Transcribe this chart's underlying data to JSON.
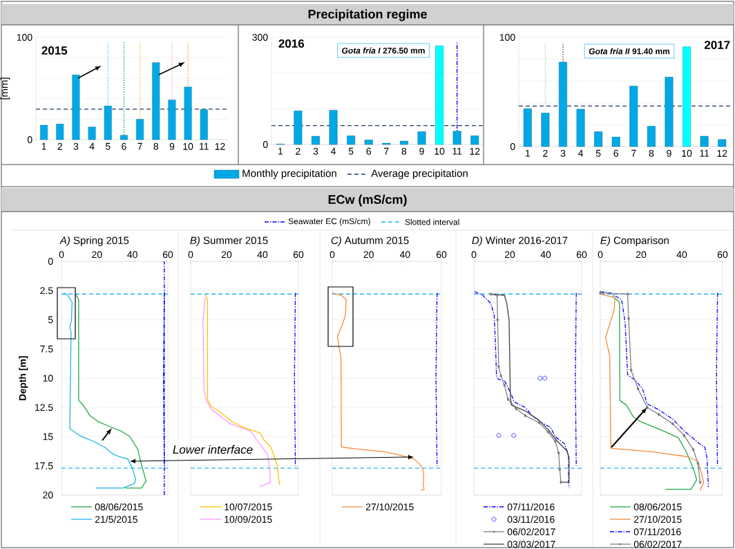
{
  "chart_data": [
    {
      "type": "bar",
      "title": "2015",
      "ylabel": "[mm]",
      "annotations": [
        "Precipitation regime"
      ],
      "x": [
        1,
        2,
        3,
        4,
        5,
        6,
        7,
        8,
        9,
        10,
        11
      ],
      "xlim": [
        0.5,
        12.5
      ],
      "xticks": [
        1,
        2,
        3,
        4,
        5,
        6,
        7,
        8,
        9,
        10,
        11,
        12
      ],
      "ylim": [
        0,
        100
      ],
      "yticks": [
        0,
        {
          "value": 20,
          "label": null
        },
        {
          "value": 40,
          "label": null
        },
        {
          "value": 60,
          "label": null
        },
        {
          "value": 80,
          "label": null
        },
        100
      ],
      "grid": "y",
      "legend": "bottom",
      "series": [
        {
          "name": "Monthly precipitation",
          "color": "#00a9e6",
          "values": [
            14.2,
            15.3,
            63.4,
            12.4,
            33,
            4.3,
            19.9,
            75.4,
            38.8,
            51.5,
            29.3
          ]
        }
      ],
      "ref_lines": [
        {
          "axis": "y",
          "value": 29.8,
          "label": "Average precipitation",
          "color": "#1f3864",
          "line_style": "dashed"
        },
        {
          "axis": "x",
          "value": 5,
          "color": "#33ccff",
          "line_style": "dotted"
        },
        {
          "axis": "x",
          "value": 6,
          "color": "#00b050",
          "line_style": "dotted"
        },
        {
          "axis": "x",
          "value": 7,
          "color": "#ffc000",
          "line_style": "dotted"
        },
        {
          "axis": "x",
          "value": 9,
          "color": "#ff99ff",
          "line_style": "dotted"
        },
        {
          "axis": "x",
          "value": 10,
          "color": "#f79646",
          "line_style": "dotted"
        }
      ]
    },
    {
      "type": "bar",
      "title": "2016",
      "annotations": [
        "*Gota fría I* 276.50 mm"
      ],
      "x": [
        1,
        2,
        3,
        4,
        5,
        6,
        7,
        8,
        9,
        10,
        11,
        12
      ],
      "xlim": [
        0.5,
        12.5
      ],
      "xticks": [
        1,
        2,
        3,
        4,
        5,
        6,
        7,
        8,
        9,
        10,
        11,
        12
      ],
      "ylim": [
        0,
        300
      ],
      "yticks": [
        0,
        {
          "value": 100,
          "label": null
        },
        {
          "value": 200,
          "label": null
        },
        300
      ],
      "grid": "y",
      "series": [
        {
          "colors": [
            "#00a9e6",
            "#00a9e6",
            "#00a9e6",
            "#00a9e6",
            "#00a9e6",
            "#00a9e6",
            "#00a9e6",
            "#00a9e6",
            "#00a9e6",
            "#00ffff",
            "#00a9e6",
            "#00a9e6"
          ],
          "values": [
            1.3,
            94.2,
            23.2,
            96.1,
            24.5,
            12.9,
            3.9,
            9.7,
            36.1,
            276.5,
            37.4,
            24.5
          ]
        }
      ],
      "ref_lines": [
        {
          "axis": "y",
          "value": 52.9,
          "color": "#1f3864",
          "line_style": "dashed"
        },
        {
          "axis": "x",
          "value": 11,
          "color": "#0000ff",
          "line_style": "dashdot"
        }
      ]
    },
    {
      "type": "bar",
      "title": "2017",
      "annotations": [
        "*Gota fría II* 91.40 mm"
      ],
      "x": [
        1,
        2,
        3,
        4,
        5,
        6,
        7,
        8,
        9,
        10,
        11,
        12
      ],
      "xlim": [
        0.5,
        12.5
      ],
      "xticks": [
        1,
        2,
        3,
        4,
        5,
        6,
        7,
        8,
        9,
        10,
        11,
        12
      ],
      "ylim": [
        0,
        100
      ],
      "yticks": [
        0,
        {
          "value": 20,
          "label": null
        },
        {
          "value": 40,
          "label": null
        },
        {
          "value": 60,
          "label": null
        },
        {
          "value": 80,
          "label": null
        },
        100
      ],
      "grid": "y",
      "series": [
        {
          "colors": [
            "#00a9e6",
            "#00a9e6",
            "#00a9e6",
            "#00a9e6",
            "#00a9e6",
            "#00a9e6",
            "#00a9e6",
            "#00a9e6",
            "#00a9e6",
            "#00ffff",
            "#00a9e6",
            "#00a9e6"
          ],
          "values": [
            34.7,
            30.7,
            77.3,
            34.3,
            13.7,
            8.8,
            55.4,
            18.7,
            63.6,
            91.4,
            9.5,
            6.5
          ]
        }
      ],
      "ref_lines": [
        {
          "axis": "y",
          "value": 37.1,
          "color": "#1f3864",
          "line_style": "dashed"
        },
        {
          "axis": "x",
          "value": 2,
          "color": "#bfbfbf",
          "line_style": "dotted"
        },
        {
          "axis": "x",
          "value": 3,
          "color": "#404040",
          "line_style": "dotted"
        }
      ]
    },
    {
      "type": "line",
      "title": "*A)* Spring 2015",
      "ylabel": "Depth [m]",
      "annotations": [
        "ECw (mS/cm)",
        "Lower interface"
      ],
      "xlim": [
        0,
        60
      ],
      "xticks": [
        0,
        20,
        40,
        60
      ],
      "ylim": [
        20,
        0
      ],
      "yticks": [
        0,
        2.5,
        5,
        7.5,
        10,
        12.5,
        15,
        17.5,
        20
      ],
      "grid": "y",
      "legend": "top right",
      "series": [
        {
          "name": "08/06/2015",
          "color": "#22a84a",
          "x": [
            8.2,
            9.7,
            9.7,
            11.6,
            14,
            16,
            20.5,
            28.2,
            33.4,
            38.6,
            43.1,
            44.4,
            45.7,
            47.7,
            45.1,
            36
          ],
          "values": [
            2.86,
            3.3,
            11.9,
            12.2,
            12.7,
            13.2,
            13.7,
            14.2,
            14.5,
            15,
            16.1,
            17,
            17.7,
            18.8,
            19.4,
            19.4
          ]
        },
        {
          "name": "21/5/2015",
          "color": "#21b3ea",
          "x": [
            1.3,
            3.6,
            6,
            5.6,
            4.7,
            5.4,
            4.7,
            10.1,
            17.9,
            24.4,
            28.2,
            32.1,
            37.3,
            39.9,
            41.8,
            41.2,
            34.7,
            19.4
          ],
          "values": [
            2.7,
            2.9,
            3.5,
            5.1,
            5.6,
            6.05,
            14.3,
            14.9,
            15.4,
            15.9,
            16.4,
            16.7,
            16.9,
            17.7,
            18.6,
            19,
            19.4,
            19.4
          ]
        },
        {
          "color": "#0000ff",
          "line_style": "dashdot",
          "x": [
            58,
            57.5,
            58
          ],
          "values": [
            2.7,
            10,
            17.5
          ]
        }
      ],
      "ref_lines": [
        {
          "axis": "x",
          "value": 58,
          "label": "Seawater EC (mS/cm)",
          "color": "#0000ff",
          "line_style": "dashdot"
        },
        {
          "axis": "y",
          "value": 2.8,
          "label": "Slotted interval",
          "color": "#21b3ea",
          "line_style": "dashed"
        },
        {
          "axis": "y",
          "value": 17.7,
          "color": "#21b3ea",
          "line_style": "dashed"
        }
      ]
    },
    {
      "type": "line",
      "title": "*B)* Summer 2015",
      "tick_labels": "x",
      "xlim": [
        0,
        60
      ],
      "xticks": [
        0,
        20,
        40,
        60
      ],
      "ylim": [
        20,
        0
      ],
      "yticks": [
        0,
        2.5,
        5,
        7.5,
        10,
        12.5,
        15,
        17.5,
        20
      ],
      "grid": "y",
      "legend": "bottom",
      "series": [
        {
          "name": "10/07/2015",
          "color": "#ffc000",
          "x": [
            8.1,
            9.4,
            9.4,
            11.3,
            16.4,
            22.8,
            27.9,
            33.1,
            38.8,
            40.8,
            44.6,
            46.5,
            48.5,
            48.7,
            49.5
          ],
          "values": [
            2.86,
            3.3,
            11.8,
            12.4,
            12.9,
            13.7,
            14.1,
            14.4,
            14.7,
            15.3,
            15.9,
            16.7,
            17.6,
            18.3,
            19.1
          ]
        },
        {
          "name": "10/09/2015",
          "color": "#ff99ff",
          "x": [
            8.1,
            6.9,
            7.4,
            8.7,
            11.8,
            16.9,
            22,
            33.1,
            37.9,
            42.7,
            44,
            44.4,
            38.3
          ],
          "values": [
            3.1,
            5.1,
            11,
            11.9,
            12.7,
            13.3,
            13.9,
            14.5,
            15.5,
            16.5,
            17.7,
            18.9,
            19.3
          ]
        },
        {
          "color": "#0000ff",
          "line_style": "dashdot",
          "x": [
            58.3,
            57.8,
            58.3
          ],
          "values": [
            2.7,
            10,
            17.5
          ]
        }
      ],
      "ref_lines": [
        {
          "axis": "y",
          "value": 2.8,
          "color": "#21b3ea",
          "line_style": "dashed"
        },
        {
          "axis": "y",
          "value": 17.7,
          "color": "#21b3ea",
          "line_style": "dashed"
        }
      ]
    },
    {
      "type": "line",
      "title": "*C)* Autumm 2015",
      "tick_labels": "x",
      "xlim": [
        0,
        60
      ],
      "xticks": [
        0,
        20,
        40,
        60
      ],
      "ylim": [
        20,
        0
      ],
      "yticks": [
        0,
        2.5,
        5,
        7.5,
        10,
        12.5,
        15,
        17.5,
        20
      ],
      "grid": "y",
      "legend": "bottom",
      "series": [
        {
          "name": "27/10/2015",
          "color": "#f58b3c",
          "x": [
            0,
            5,
            7.7,
            7.1,
            4.8,
            2.9,
            3.5,
            4.8,
            5,
            16.2,
            28.8,
            37.6,
            44.9,
            47.7,
            49.6,
            50.3,
            50,
            50.5,
            48.7
          ],
          "values": [
            2.7,
            2.9,
            3.3,
            4.7,
            5.7,
            6.4,
            7.1,
            8.3,
            15.9,
            16.1,
            16.3,
            16.6,
            16.9,
            17.3,
            17.7,
            18.3,
            19.1,
            19.5,
            19.6
          ]
        },
        {
          "color": "#0000ff",
          "line_style": "dashdot",
          "x": [
            57.6,
            57,
            57.6
          ],
          "values": [
            2.7,
            10,
            17.5
          ]
        }
      ],
      "ref_lines": [
        {
          "axis": "y",
          "value": 2.8,
          "color": "#21b3ea",
          "line_style": "dashed"
        },
        {
          "axis": "y",
          "value": 17.7,
          "color": "#21b3ea",
          "line_style": "dashed"
        }
      ]
    },
    {
      "type": "line",
      "title": "*D)* Winter 2016-2017",
      "tick_labels": "x",
      "xlim": [
        0,
        60
      ],
      "xticks": [
        0,
        20,
        40,
        60
      ],
      "ylim": [
        20,
        0
      ],
      "yticks": [
        0,
        2.5,
        5,
        7.5,
        10,
        12.5,
        15,
        17.5,
        20
      ],
      "grid": "y",
      "legend": "bottom",
      "series": [
        {
          "name": "07/11/2016",
          "color": "#0000ff",
          "line_style": "dashdot",
          "x": [
            0.4,
            4.9,
            9.4,
            11.3,
            12,
            12.6,
            13.8,
            17,
            20.9,
            22.2,
            28.6,
            32.4,
            37.6,
            42.7,
            45.3,
            50.4,
            52.7,
            52.7,
            53.2
          ],
          "values": [
            2.6,
            2.9,
            3.6,
            4.6,
            7,
            9.8,
            10.1,
            10.2,
            11.4,
            12,
            12.5,
            13.2,
            13.8,
            14.2,
            15,
            15.6,
            16.6,
            19,
            19.4
          ]
        },
        {
          "name": "03/11/2016",
          "type": "scatter",
          "marker": "circle",
          "color": "#3333ff",
          "x": [
            36.9,
            39.5,
            13.8,
            22.2
          ],
          "values": [
            10,
            10,
            14.9,
            14.9
          ]
        },
        {
          "name": "06/02/2017",
          "marker": "diamond",
          "color": "#808080",
          "x": [
            9.4,
            12.9,
            13.2,
            13.8,
            15.1,
            17,
            19,
            23.5,
            28.6,
            36.3,
            41.4,
            45.3,
            47.2,
            47.8,
            48.5
          ],
          "values": [
            2.8,
            2.9,
            5,
            9,
            9.8,
            10.6,
            11.8,
            12.6,
            13.2,
            13.8,
            14.6,
            15.4,
            16.4,
            17.8,
            18.9
          ]
        },
        {
          "name": "03/03/2017",
          "color": "#404040",
          "x": [
            9.4,
            17,
            18.3,
            19.6,
            20.3,
            20.9,
            28.6,
            36.3,
            41.4,
            46.5,
            51.7,
            53,
            53,
            48.5
          ],
          "values": [
            2.8,
            2.9,
            3.6,
            5,
            11.6,
            12.3,
            12.8,
            13.6,
            14.4,
            15.4,
            16.2,
            16.8,
            18.9,
            18.9
          ]
        },
        {
          "color": "#0000ff",
          "line_style": "dashdot",
          "x": [
            57,
            56.5,
            57
          ],
          "values": [
            2.7,
            10,
            17.5
          ]
        }
      ],
      "ref_lines": [
        {
          "axis": "y",
          "value": 2.8,
          "color": "#21b3ea",
          "line_style": "dashed"
        },
        {
          "axis": "y",
          "value": 17.7,
          "color": "#21b3ea",
          "line_style": "dashed"
        }
      ]
    },
    {
      "type": "line",
      "title": "*E)* Comparison",
      "tick_labels": "x",
      "xlim": [
        0,
        60
      ],
      "xticks": [
        0,
        20,
        40,
        60
      ],
      "ylim": [
        20,
        0
      ],
      "yticks": [
        0,
        2.5,
        5,
        7.5,
        10,
        12.5,
        15,
        17.5,
        20
      ],
      "grid": "y",
      "legend": "bottom",
      "series": [
        {
          "name": "08/06/2015",
          "color": "#22a84a",
          "x": [
            6,
            9.4,
            9.6,
            12.8,
            16.2,
            19.6,
            30.9,
            38.3,
            42.2,
            45.6,
            47.3,
            44.5,
            32
          ],
          "values": [
            2.96,
            3.5,
            11.9,
            12.3,
            13.3,
            13.7,
            14.5,
            15.1,
            16.3,
            17.7,
            18.7,
            19.5,
            19.5
          ]
        },
        {
          "name": "27/10/2015",
          "color": "#f58b3c",
          "x": [
            0,
            7.1,
            6.9,
            2.6,
            4.6,
            5.2,
            25.3,
            42.2,
            47.9,
            49.6,
            50.7,
            49
          ],
          "values": [
            2.8,
            3.1,
            4.1,
            6.5,
            8.1,
            16,
            16.3,
            16.7,
            17.1,
            18.1,
            18.9,
            19.6
          ]
        },
        {
          "name": "07/11/2016",
          "color": "#0000ff",
          "line_style": "dashdot",
          "x": [
            0,
            4.9,
            10.5,
            12.2,
            13.4,
            17.3,
            20.7,
            23,
            28.7,
            35.5,
            41.1,
            47.9,
            51.3,
            52.4,
            53
          ],
          "values": [
            2.6,
            2.7,
            3.3,
            5.3,
            9.7,
            10.2,
            10.9,
            12.2,
            12.7,
            13.5,
            14.5,
            15.5,
            15.9,
            16.9,
            19.3
          ]
        },
        {
          "name": "06/02/2017",
          "marker": "diamond",
          "color": "#808080",
          "x": [
            0,
            13.4,
            13.9,
            15.1,
            18.5,
            23,
            28.7,
            35.5,
            41.1,
            45.6,
            47.9,
            49
          ],
          "values": [
            2.7,
            2.8,
            4.9,
            9.3,
            10.9,
            12.5,
            13.1,
            13.9,
            14.9,
            16.1,
            17.3,
            18.9
          ]
        },
        {
          "color": "#0000ff",
          "line_style": "dashdot",
          "x": [
            57.5,
            57,
            57.5
          ],
          "values": [
            2.7,
            10,
            17.5
          ]
        }
      ],
      "ref_lines": [
        {
          "axis": "y",
          "value": 2.8,
          "color": "#21b3ea",
          "line_style": "dashed"
        },
        {
          "axis": "y",
          "value": 17.7,
          "color": "#21b3ea",
          "line_style": "dashed"
        }
      ]
    }
  ]
}
